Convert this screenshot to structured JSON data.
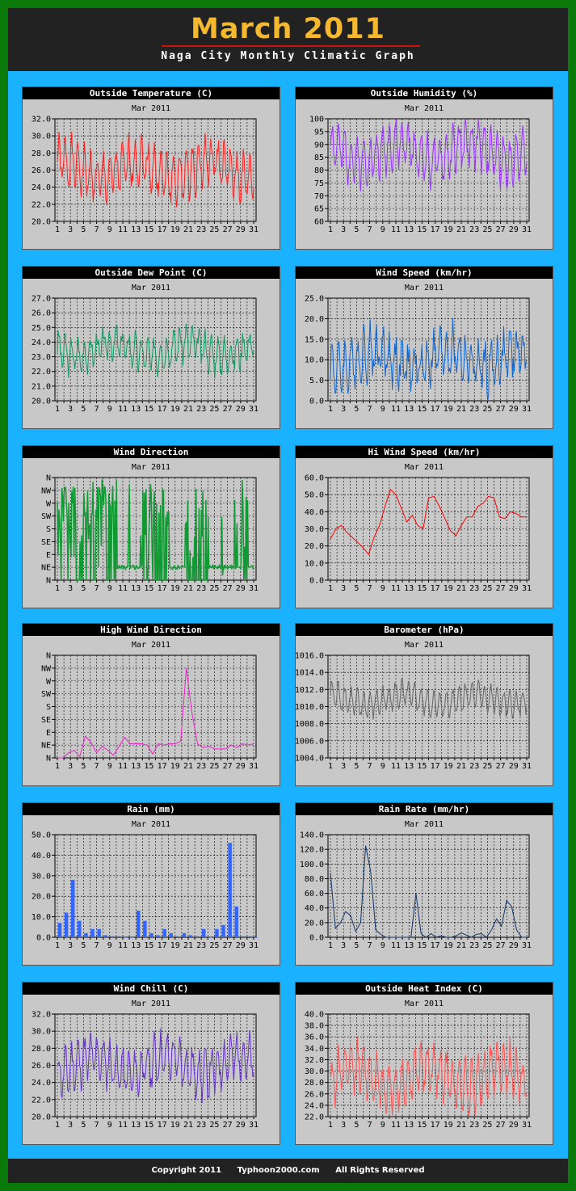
{
  "page": {
    "title": "March 2011",
    "subtitle": "Naga City Monthly Climatic Graph",
    "footer": [
      "Copyright 2011",
      "Typhoon2000.com",
      "All Rights Reserved"
    ]
  },
  "chart_data": [
    {
      "type": "line",
      "title": "Outside Temperature (C)",
      "period": "Mar 2011",
      "color": "#ff2222",
      "ylim": [
        20,
        32
      ],
      "ystep": 2,
      "ydec": 1,
      "seed": 1,
      "base": 26,
      "amp": 3,
      "noise": 2.5,
      "xticks": [
        "1",
        "3",
        "5",
        "7",
        "9",
        "11",
        "13",
        "15",
        "17",
        "19",
        "21",
        "23",
        "25",
        "27",
        "29",
        "31"
      ]
    },
    {
      "type": "line",
      "title": "Outside Humidity (%)",
      "period": "Mar 2011",
      "color": "#9933ff",
      "ylim": [
        60,
        100
      ],
      "ystep": 5,
      "ydec": 0,
      "seed": 2,
      "base": 87,
      "amp": 10,
      "noise": 8,
      "xticks": [
        "1",
        "3",
        "5",
        "7",
        "9",
        "11",
        "13",
        "15",
        "17",
        "19",
        "21",
        "23",
        "25",
        "27",
        "29",
        "31"
      ]
    },
    {
      "type": "line",
      "title": "Outside Dew Point (C)",
      "period": "Mar 2011",
      "color": "#119966",
      "ylim": [
        20,
        27
      ],
      "ystep": 1,
      "ydec": 1,
      "seed": 3,
      "base": 23.5,
      "amp": 1.3,
      "noise": 1.2,
      "xticks": [
        "1",
        "3",
        "5",
        "7",
        "9",
        "11",
        "13",
        "15",
        "17",
        "19",
        "21",
        "23",
        "25",
        "27",
        "29",
        "31"
      ]
    },
    {
      "type": "line",
      "title": "Wind Speed (km/hr)",
      "period": "Mar 2011",
      "color": "#1166cc",
      "ylim": [
        0,
        25
      ],
      "ystep": 5,
      "ydec": 1,
      "seed": 4,
      "base": 10,
      "amp": 6,
      "noise": 7,
      "xticks": [
        "1",
        "3",
        "5",
        "7",
        "9",
        "11",
        "13",
        "15",
        "17",
        "19",
        "21",
        "23",
        "25",
        "27",
        "29",
        "31"
      ]
    },
    {
      "type": "direction",
      "title": "Wind Direction",
      "period": "Mar 2011",
      "color": "#119933",
      "ylabels": [
        "N",
        "NE",
        "E",
        "SE",
        "S",
        "SW",
        "W",
        "NW",
        "N"
      ],
      "seed": 5,
      "xticks": [
        "1",
        "3",
        "5",
        "7",
        "9",
        "11",
        "13",
        "15",
        "17",
        "19",
        "21",
        "23",
        "25",
        "27",
        "29",
        "31"
      ]
    },
    {
      "type": "line",
      "title": "Hi Wind Speed (km/hr)",
      "period": "Mar 2011",
      "color": "#ff0000",
      "ylim": [
        0,
        60
      ],
      "ystep": 10,
      "ydec": 1,
      "values": [
        24,
        30,
        32,
        28,
        25,
        22,
        19,
        15,
        25,
        32,
        43,
        53,
        50,
        42,
        34,
        38,
        32,
        30,
        48,
        49,
        43,
        36,
        29,
        26,
        32,
        37,
        37,
        43,
        45,
        49,
        48,
        37,
        36,
        40,
        39,
        37,
        37
      ],
      "xticks": [
        "1",
        "3",
        "5",
        "7",
        "9",
        "11",
        "13",
        "15",
        "17",
        "19",
        "21",
        "23",
        "25",
        "27",
        "29",
        "31"
      ]
    },
    {
      "type": "line",
      "title": "High Wind Direction",
      "period": "Mar 2011",
      "color": "#ee22cc",
      "categorical": true,
      "ylabels": [
        "N",
        "NE",
        "E",
        "SE",
        "S",
        "SW",
        "W",
        "NW",
        "N"
      ],
      "ylim": [
        0,
        8
      ],
      "values": [
        0,
        0,
        0.4,
        0.6,
        0.1,
        1.7,
        1.2,
        0.4,
        0.9,
        0.6,
        0.2,
        0.9,
        1.6,
        1.1,
        1.1,
        1.1,
        1,
        0.3,
        1.1,
        1,
        1.1,
        1.1,
        1.3,
        7,
        3.5,
        1.1,
        0.8,
        0.9,
        0.7,
        0.7,
        0.7,
        1,
        0.8,
        1.1,
        1,
        1.1
      ],
      "xticks": [
        "1",
        "3",
        "5",
        "7",
        "9",
        "11",
        "13",
        "15",
        "17",
        "19",
        "21",
        "23",
        "25",
        "27",
        "29",
        "31"
      ]
    },
    {
      "type": "line",
      "title": "Barometer (hPa)",
      "period": "Mar 2011",
      "color": "#666666",
      "ylim": [
        1004,
        1016
      ],
      "ystep": 2,
      "ydec": 1,
      "seed": 8,
      "base": 1010.8,
      "amp": 1.8,
      "noise": 1.2,
      "xticks": [
        "1",
        "3",
        "5",
        "7",
        "9",
        "11",
        "13",
        "15",
        "17",
        "19",
        "21",
        "23",
        "25",
        "27",
        "29",
        "31"
      ]
    },
    {
      "type": "bar",
      "title": "Rain (mm)",
      "period": "Mar 2011",
      "color": "#3366ff",
      "ylim": [
        0,
        50
      ],
      "ystep": 10,
      "ydec": 1,
      "values": [
        7,
        12,
        28,
        8,
        2,
        4,
        4,
        1,
        0.5,
        0.5,
        0,
        0,
        13,
        8,
        2,
        1,
        4,
        2,
        0.5,
        2,
        1,
        0.5,
        4,
        0,
        4,
        6,
        46,
        15,
        0.5,
        0.5,
        0
      ],
      "xticks": [
        "1",
        "3",
        "5",
        "7",
        "9",
        "11",
        "13",
        "15",
        "17",
        "19",
        "21",
        "23",
        "25",
        "27",
        "29",
        "31"
      ]
    },
    {
      "type": "line",
      "title": "Rain Rate (mm/hr)",
      "period": "Mar 2011",
      "color": "#113366",
      "ylim": [
        0,
        140
      ],
      "ystep": 20,
      "ydec": 1,
      "values": [
        88,
        12,
        20,
        35,
        30,
        8,
        20,
        125,
        90,
        10,
        4,
        0,
        0,
        0,
        0,
        0,
        0,
        60,
        5,
        0,
        5,
        0,
        2,
        0,
        0,
        2,
        6,
        3,
        0,
        4,
        5,
        0,
        10,
        25,
        15,
        50,
        42,
        10,
        0,
        0
      ],
      "xticks": [
        "1",
        "3",
        "5",
        "7",
        "9",
        "11",
        "13",
        "15",
        "17",
        "19",
        "21",
        "23",
        "25",
        "27",
        "29",
        "31"
      ]
    },
    {
      "type": "line",
      "title": "Wind Chill (C)",
      "period": "Mar 2011",
      "color": "#6633cc",
      "ylim": [
        20,
        32
      ],
      "ystep": 2,
      "ydec": 1,
      "seed": 11,
      "base": 26,
      "amp": 3,
      "noise": 2.5,
      "xticks": [
        "1",
        "3",
        "5",
        "7",
        "9",
        "11",
        "13",
        "15",
        "17",
        "19",
        "21",
        "23",
        "25",
        "27",
        "29",
        "31"
      ]
    },
    {
      "type": "line",
      "title": "Outside Heat Index (C)",
      "period": "Mar 2011",
      "color": "#ff5555",
      "ylim": [
        22,
        40
      ],
      "ystep": 2,
      "ydec": 1,
      "seed": 12,
      "base": 29,
      "amp": 5,
      "noise": 4,
      "xticks": [
        "1",
        "3",
        "5",
        "7",
        "9",
        "11",
        "13",
        "15",
        "17",
        "19",
        "21",
        "23",
        "25",
        "27",
        "29",
        "31"
      ]
    }
  ]
}
